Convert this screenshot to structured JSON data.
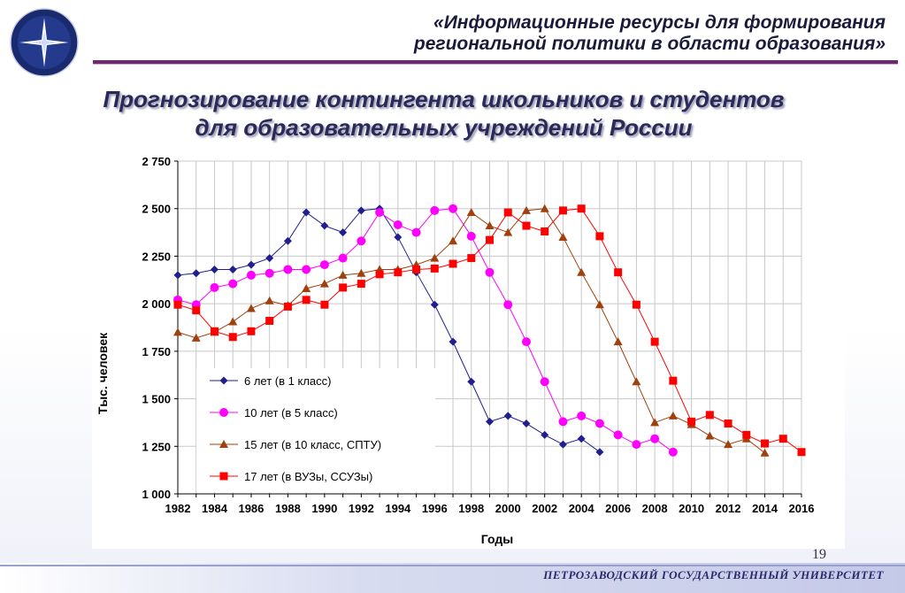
{
  "header": {
    "line1": "«Информационные ресурсы для формирования",
    "line2": "региональной политики в области образования»"
  },
  "slide": {
    "title_line1": "Прогнозирование контингента школьников и студентов",
    "title_line2": "для образовательных учреждений России",
    "page_number": "19"
  },
  "footer": {
    "university": "ПЕТРОЗАВОДСКИЙ ГОСУДАРСТВЕННЫЙ УНИВЕРСИТЕТ"
  },
  "colors": {
    "series": [
      "#1f1f8f",
      "#ff00ff",
      "#a0400c",
      "#ff0000"
    ],
    "accent": "#6b2a6e"
  },
  "chart_data": {
    "type": "line",
    "title": "",
    "xlabel": "Годы",
    "ylabel": "Тыс. человек",
    "xlim": [
      1982,
      2016
    ],
    "ylim": [
      1000,
      2750
    ],
    "x_ticks": [
      "1982",
      "1984",
      "1986",
      "1988",
      "1990",
      "1992",
      "1994",
      "1996",
      "1998",
      "2000",
      "2002",
      "2004",
      "2006",
      "2008",
      "2010",
      "2012",
      "2014",
      "2016"
    ],
    "y_ticks": [
      "1 000",
      "1 250",
      "1 500",
      "1 750",
      "2 000",
      "2 250",
      "2 500",
      "2 750"
    ],
    "y_tick_values": [
      1000,
      1250,
      1500,
      1750,
      2000,
      2250,
      2500,
      2750
    ],
    "grid": true,
    "legend_position": "inside-lower-left",
    "series": [
      {
        "name": "6 лет (в 1 класс)",
        "marker": "diamond",
        "x": [
          1982,
          1983,
          1984,
          1985,
          1986,
          1987,
          1988,
          1989,
          1990,
          1991,
          1992,
          1993,
          1994,
          1995,
          1996,
          1997,
          1998,
          1999,
          2000,
          2001,
          2002,
          2003,
          2004,
          2005
        ],
        "y": [
          2150,
          2160,
          2180,
          2180,
          2205,
          2240,
          2330,
          2480,
          2410,
          2375,
          2490,
          2500,
          2350,
          2165,
          1995,
          1800,
          1590,
          1380,
          1410,
          1370,
          1310,
          1260,
          1290,
          1220
        ]
      },
      {
        "name": "10 лет (в 5 класс)",
        "marker": "circle",
        "x": [
          1982,
          1983,
          1984,
          1985,
          1986,
          1987,
          1988,
          1989,
          1990,
          1991,
          1992,
          1993,
          1994,
          1995,
          1996,
          1997,
          1998,
          1999,
          2000,
          2001,
          2002,
          2003,
          2004,
          2005,
          2006,
          2007,
          2008,
          2009
        ],
        "y": [
          2020,
          1995,
          2085,
          2105,
          2150,
          2160,
          2180,
          2180,
          2205,
          2240,
          2330,
          2480,
          2415,
          2375,
          2490,
          2500,
          2355,
          2165,
          1995,
          1800,
          1590,
          1380,
          1410,
          1370,
          1310,
          1260,
          1290,
          1220
        ]
      },
      {
        "name": "15 лет (в 10 класс, СПТУ)",
        "marker": "triangle",
        "x": [
          1982,
          1983,
          1984,
          1985,
          1986,
          1987,
          1988,
          1989,
          1990,
          1991,
          1992,
          1993,
          1994,
          1995,
          1996,
          1997,
          1998,
          1999,
          2000,
          2001,
          2002,
          2003,
          2004,
          2005,
          2006,
          2007,
          2008,
          2009,
          2010,
          2011,
          2012,
          2013,
          2014
        ],
        "y": [
          1850,
          1820,
          1850,
          1905,
          1975,
          2015,
          1990,
          2080,
          2105,
          2150,
          2160,
          2180,
          2180,
          2205,
          2240,
          2330,
          2480,
          2410,
          2375,
          2490,
          2500,
          2350,
          2165,
          1995,
          1800,
          1590,
          1375,
          1410,
          1365,
          1305,
          1260,
          1290,
          1215
        ]
      },
      {
        "name": "17 лет (в ВУЗы, ССУЗы)",
        "marker": "square",
        "x": [
          1982,
          1983,
          1984,
          1985,
          1986,
          1987,
          1988,
          1989,
          1990,
          1991,
          1992,
          1993,
          1994,
          1995,
          1996,
          1997,
          1998,
          1999,
          2000,
          2001,
          2002,
          2003,
          2004,
          2005,
          2006,
          2007,
          2008,
          2009,
          2010,
          2011,
          2012,
          2013,
          2014,
          2015,
          2016
        ],
        "y": [
          1995,
          1965,
          1855,
          1825,
          1855,
          1910,
          1985,
          2020,
          1995,
          2085,
          2105,
          2155,
          2165,
          2180,
          2185,
          2210,
          2240,
          2335,
          2480,
          2410,
          2380,
          2490,
          2500,
          2355,
          2165,
          1995,
          1800,
          1595,
          1380,
          1415,
          1370,
          1310,
          1265,
          1290,
          1220
        ]
      }
    ]
  }
}
